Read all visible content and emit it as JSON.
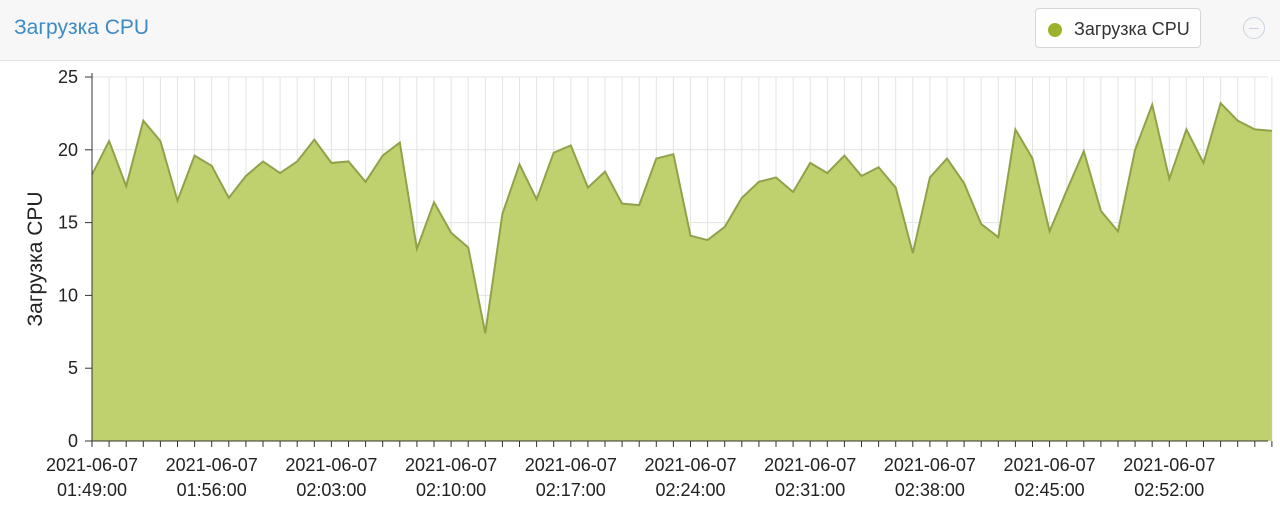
{
  "chart_data": {
    "type": "area",
    "title": "Загрузка CPU",
    "y_label": "Загрузка CPU",
    "categories": [
      "2021-06-07 01:49:00",
      null,
      null,
      null,
      null,
      null,
      null,
      "2021-06-07 01:56:00",
      null,
      null,
      null,
      null,
      null,
      null,
      "2021-06-07 02:03:00",
      null,
      null,
      null,
      null,
      null,
      null,
      "2021-06-07 02:10:00",
      null,
      null,
      null,
      null,
      null,
      null,
      "2021-06-07 02:17:00",
      null,
      null,
      null,
      null,
      null,
      null,
      "2021-06-07 02:24:00",
      null,
      null,
      null,
      null,
      null,
      null,
      "2021-06-07 02:31:00",
      null,
      null,
      null,
      null,
      null,
      null,
      "2021-06-07 02:38:00",
      null,
      null,
      null,
      null,
      null,
      null,
      "2021-06-07 02:45:00",
      null,
      null,
      null,
      null,
      null,
      null,
      "2021-06-07 02:52:00",
      null,
      null,
      null,
      null,
      null,
      null
    ],
    "series": [
      {
        "name": "Загрузка CPU",
        "color": "#bfd16e",
        "line_color": "#8fa24a",
        "legend_color": "#9db22c",
        "values": [
          18.3,
          20.6,
          17.5,
          22.0,
          20.6,
          16.5,
          19.6,
          18.9,
          16.7,
          18.2,
          19.2,
          18.4,
          19.2,
          20.7,
          19.1,
          19.2,
          17.8,
          19.6,
          20.5,
          13.2,
          16.4,
          14.3,
          13.3,
          7.4,
          15.6,
          19.0,
          16.6,
          19.8,
          20.3,
          17.4,
          18.5,
          16.3,
          16.2,
          19.4,
          19.7,
          14.1,
          13.8,
          14.7,
          16.7,
          17.8,
          18.1,
          17.1,
          19.1,
          18.4,
          19.6,
          18.2,
          18.8,
          17.4,
          12.9,
          18.1,
          19.4,
          17.7,
          14.9,
          14.0,
          21.4,
          19.4,
          14.4,
          17.2,
          19.9,
          15.8,
          14.4,
          20.0,
          23.1,
          18.0,
          21.4,
          19.1,
          23.2,
          22.0,
          21.4,
          21.3
        ]
      }
    ],
    "ylim": [
      0,
      25
    ],
    "yticks": [
      0,
      5,
      10,
      15,
      20,
      25
    ],
    "grid": true
  }
}
